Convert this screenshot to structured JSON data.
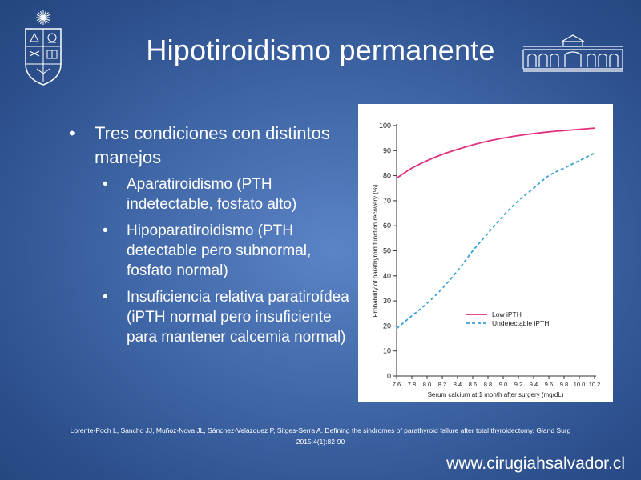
{
  "slide": {
    "title": "Hipotiroidismo permanente",
    "bullets": [
      {
        "text": "Tres condiciones con distintos manejos",
        "sub": [
          "Aparatiroidismo (PTH indetectable, fosfato alto)",
          "Hipoparatiroidismo (PTH detectable pero subnormal, fosfato normal)",
          "Insuficiencia relativa paratiroídea (iPTH normal pero insuficiente para mantener calcemia normal)"
        ]
      }
    ],
    "citation_line1": "Lorente-Poch L, Sancho JJ, Muñoz-Nova JL, Sánchez-Velázquez P, Sitges-Serra A. Defining the sindromes of parathyroid failure after total thyroidectomy.  Gland Surg",
    "citation_line2": "2015:4(1):82-90",
    "website": "www.cirugiahsalvador.cl",
    "logo_left_icon": "university-crest-icon",
    "logo_right_icon": "hospital-building-icon"
  },
  "chart_data": {
    "type": "line",
    "title": "",
    "xlabel": "Serum calcium at 1 month after surgery (mg/dL)",
    "ylabel": "Probability of parathyroid function recovery (%)",
    "xlim": [
      7.6,
      10.2
    ],
    "ylim": [
      0,
      100
    ],
    "xticks": [
      "7.6",
      "7.8",
      "8.0",
      "8.2",
      "8.4",
      "8.6",
      "8.8",
      "9.0",
      "9.2",
      "9.4",
      "9.6",
      "9.8",
      "10.0",
      "10.2"
    ],
    "yticks": [
      "0",
      "10",
      "20",
      "30",
      "40",
      "50",
      "60",
      "70",
      "80",
      "90",
      "100"
    ],
    "grid": false,
    "legend": "bottom-right",
    "series": [
      {
        "name": "Low iPTH",
        "color": "#e0307e",
        "dash": "solid",
        "x": [
          7.6,
          7.8,
          8.0,
          8.2,
          8.4,
          8.6,
          8.8,
          9.0,
          9.2,
          9.4,
          9.6,
          9.8,
          10.0,
          10.2
        ],
        "y": [
          79,
          83,
          86,
          88.5,
          90.5,
          92.3,
          93.8,
          95,
          96,
          96.8,
          97.5,
          98,
          98.5,
          99
        ]
      },
      {
        "name": "Undetectable iPTH",
        "color": "#3aa0d8",
        "dash": "dashed",
        "x": [
          7.6,
          7.8,
          8.0,
          8.2,
          8.4,
          8.6,
          8.8,
          9.0,
          9.2,
          9.4,
          9.6,
          9.8,
          10.0,
          10.2
        ],
        "y": [
          19,
          24,
          29,
          35,
          42,
          50,
          57,
          64,
          70,
          75,
          80,
          83,
          86,
          89
        ]
      }
    ]
  }
}
